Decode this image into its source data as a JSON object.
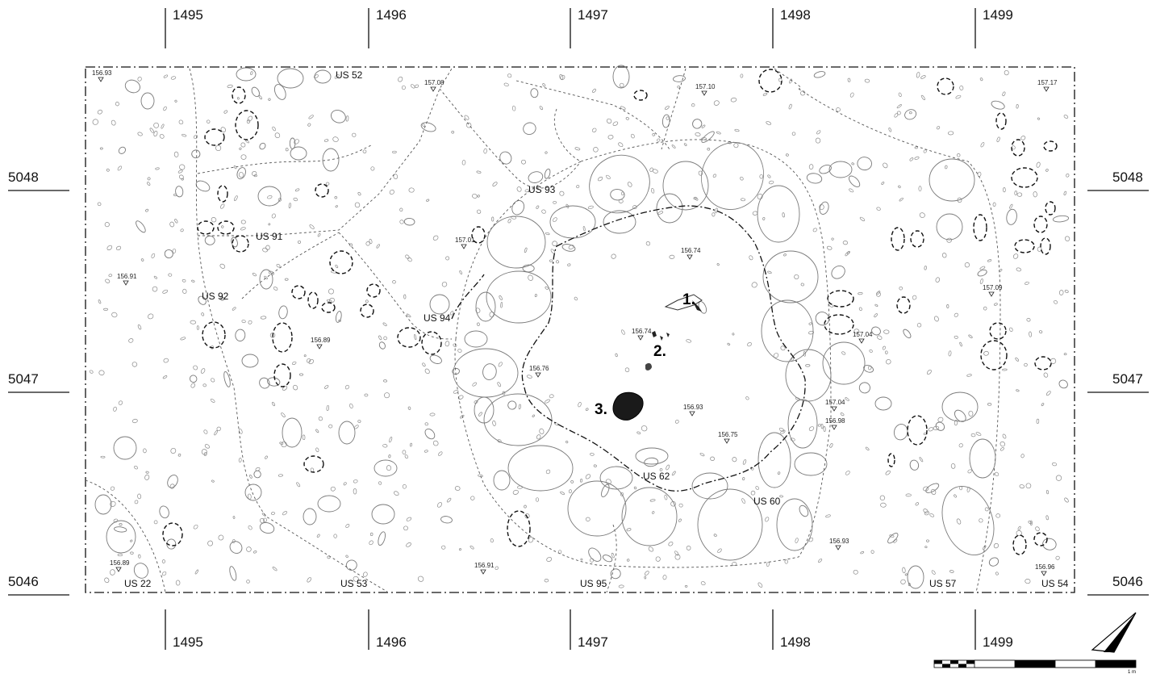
{
  "grid": {
    "x_labels": [
      "1495",
      "1496",
      "1497",
      "1498",
      "1499"
    ],
    "y_labels": [
      "5048",
      "5047",
      "5046"
    ]
  },
  "units": [
    {
      "id": "us52",
      "label": "US 52"
    },
    {
      "id": "us93",
      "label": "US 93"
    },
    {
      "id": "us91",
      "label": "US 91"
    },
    {
      "id": "us92",
      "label": "US 92"
    },
    {
      "id": "us94",
      "label": "US 94"
    },
    {
      "id": "us62",
      "label": "US 62"
    },
    {
      "id": "us60",
      "label": "US 60"
    },
    {
      "id": "us22",
      "label": "US 22"
    },
    {
      "id": "us53",
      "label": "US 53"
    },
    {
      "id": "us95",
      "label": "US 95"
    },
    {
      "id": "us57",
      "label": "US 57"
    },
    {
      "id": "us54",
      "label": "US 54"
    }
  ],
  "elevations": [
    "156.93",
    "157.08",
    "157.10",
    "157.17",
    "157.01",
    "156.74",
    "156.91",
    "157.09",
    "156.74",
    "156.89",
    "157.04",
    "156.76",
    "157.04",
    "156.98",
    "156.93",
    "156.75",
    "156.93",
    "156.89",
    "156.91",
    "156.96"
  ],
  "finds": [
    "1.",
    "2.",
    "3."
  ],
  "scale": {
    "label": "1 m"
  },
  "north_arrow": "north-arrow"
}
